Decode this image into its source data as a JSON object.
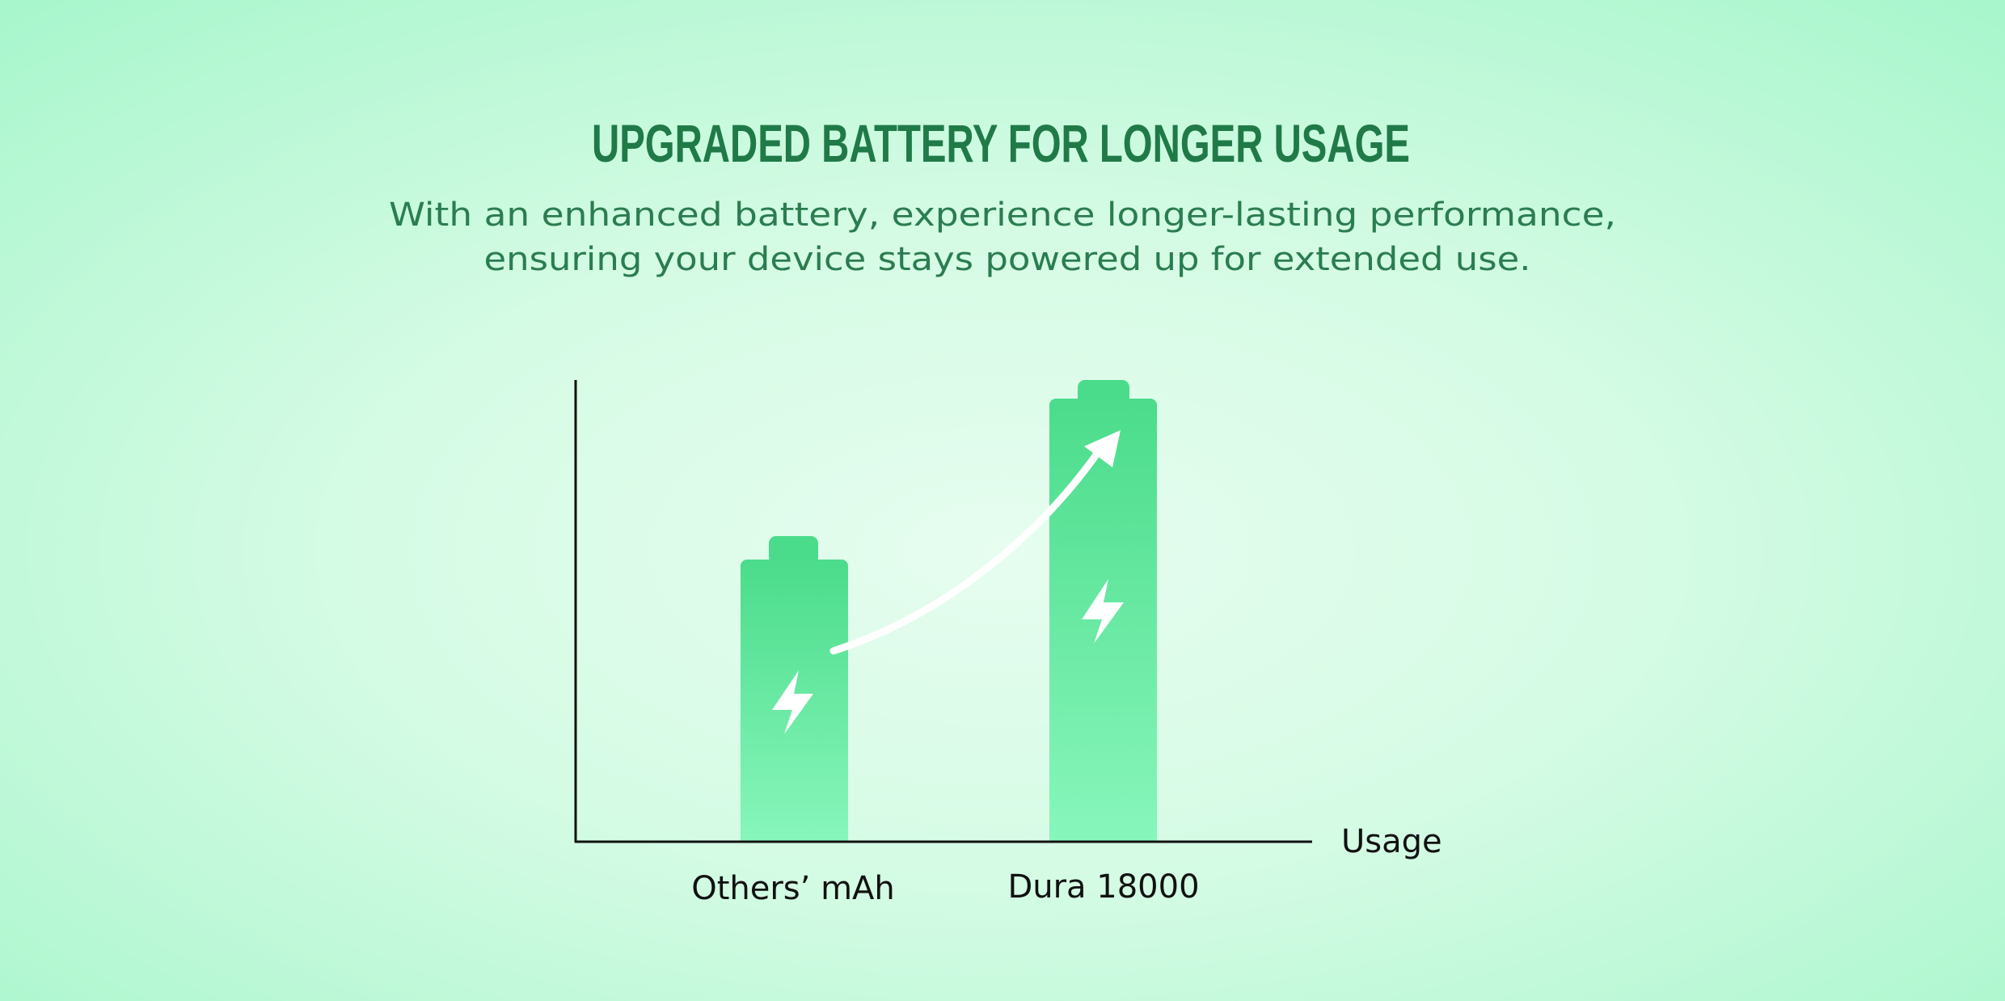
{
  "header": {
    "title": "UPGRADED BATTERY FOR LONGER USAGE",
    "subtitle": [
      "With an enhanced battery, experience longer-lasting performance,",
      "ensuring your device stays powered up for extended use."
    ]
  },
  "graphic": {
    "x_axis_label": "Usage",
    "categories": [
      "Others’ mAh",
      "Dura 18000"
    ]
  }
}
